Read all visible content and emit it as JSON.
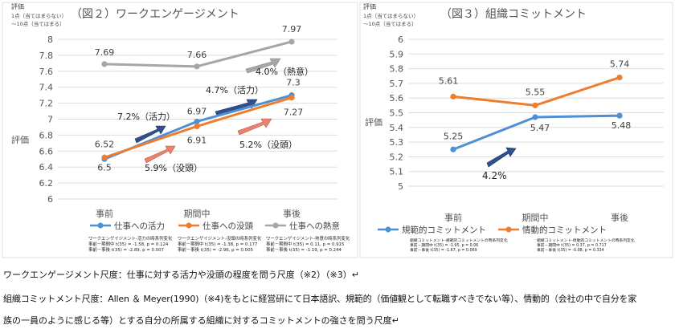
{
  "colors": {
    "blue": "#4f8fd3",
    "orange": "#ef7d2c",
    "gray": "#a6a6a6",
    "grid": "#dddddd",
    "navy_arrow": "#2f4f8f",
    "salmon_arrow": "#e8836e",
    "gray_arrow": "#a6a6a6"
  },
  "chart_data": [
    {
      "type": "line",
      "title": "（図２）ワークエンゲージメント",
      "axis_note": [
        "評価",
        "1点（当てはまらない）",
        "～10点（当てはまる）"
      ],
      "ylabel": "評価",
      "ylim": [
        6,
        8
      ],
      "ytick_step": 0.2,
      "yticks": [
        "6",
        "6.2",
        "6.4",
        "6.6",
        "6.8",
        "7",
        "7.2",
        "7.4",
        "7.6",
        "7.8",
        "8"
      ],
      "categories": [
        "事前",
        "期間中",
        "事後"
      ],
      "series": [
        {
          "name": "仕事への活力",
          "color": "#4f8fd3",
          "values": [
            6.5,
            6.97,
            7.3
          ],
          "labels": [
            "6.5",
            "6.97",
            "7.3"
          ]
        },
        {
          "name": "仕事への没頭",
          "color": "#ef7d2c",
          "values": [
            6.52,
            6.91,
            7.27
          ],
          "labels": [
            "6.52",
            "6.91",
            "7.27"
          ]
        },
        {
          "name": "仕事への熱意",
          "color": "#a6a6a6",
          "values": [
            7.69,
            7.66,
            7.97
          ],
          "labels": [
            "7.69",
            "7.66",
            "7.97"
          ]
        }
      ],
      "annotations": [
        "7.2%（活力）",
        "4.7%（活力）",
        "5.9%（没頭）",
        "5.2%（没頭）",
        "4.0%（熱意）"
      ],
      "stat_notes": [
        [
          "ワークエンゲイジメント-活力の時系列変化",
          "事前－期間中 t(35) = -1.58, p = 0.124",
          "事前－事後 t(35) = -2.89, p = 0.007"
        ],
        [
          "ワークエンゲイジメント-没頭の時系列変化",
          "事前－期間中 t(35) = -1.38, p = 0.177",
          "事前－事後 t(35) = -2.96, p = 0.005"
        ],
        [
          "ワークエンゲイジメント-熱意の時系列変化",
          "事前－期間中 t(35) = 0.11, p = 0.915",
          "事前－事後 t(35) = -1.19, p = 0.244"
        ]
      ]
    },
    {
      "type": "line",
      "title": "（図３）組織コミットメント",
      "axis_note": [
        "評価",
        "1点（当てはまらない）",
        "～10点（当てはまる）"
      ],
      "ylabel": "評価",
      "ylim": [
        5,
        6
      ],
      "ytick_step": 0.1,
      "yticks": [
        "5",
        "5.1",
        "5.2",
        "5.3",
        "5.4",
        "5.5",
        "5.6",
        "5.7",
        "5.8",
        "5.9",
        "6"
      ],
      "categories": [
        "事前",
        "期間中",
        "事後"
      ],
      "series": [
        {
          "name": "規範的コミットメント",
          "color": "#4f8fd3",
          "values": [
            5.25,
            5.47,
            5.48
          ],
          "labels": [
            "5.25",
            "5.47",
            "5.48"
          ]
        },
        {
          "name": "情動的コミットメント",
          "color": "#ef7d2c",
          "values": [
            5.61,
            5.55,
            5.74
          ],
          "labels": [
            "5.61",
            "5.55",
            "5.74"
          ]
        }
      ],
      "annotations": [
        "4.2%"
      ],
      "stat_notes": [
        [
          "組織コミットメント-規範的コミットメントの時系列変化",
          "事前－期間中 t(35) = -1.95, p = 0.06",
          "事前－事後 t(35) = -1.67, p = 0.069"
        ],
        [
          "組織コミットメント-情動的コミットメントの時系列変化",
          "事前－期間中 t(35) = 0.37, p = 0.717",
          "事前－事後 t(35) = -0.98, p = 0.334"
        ]
      ]
    }
  ],
  "captions": [
    "ワークエンゲージメント尺度：仕事に対する活力や没頭の程度を問う尺度（※2）（※3）↵",
    "組織コミットメント尺度：Allen ＆ Meyer(1990)（※4)をもとに経営研にて日本語訳、規範的（価値観として転職すべきでない等）、情動的（会社の中で自分を家",
    "族の一員のように感じる等）とする自分の所属する組織に対するコミットメントの強さを問う尺度↵"
  ]
}
